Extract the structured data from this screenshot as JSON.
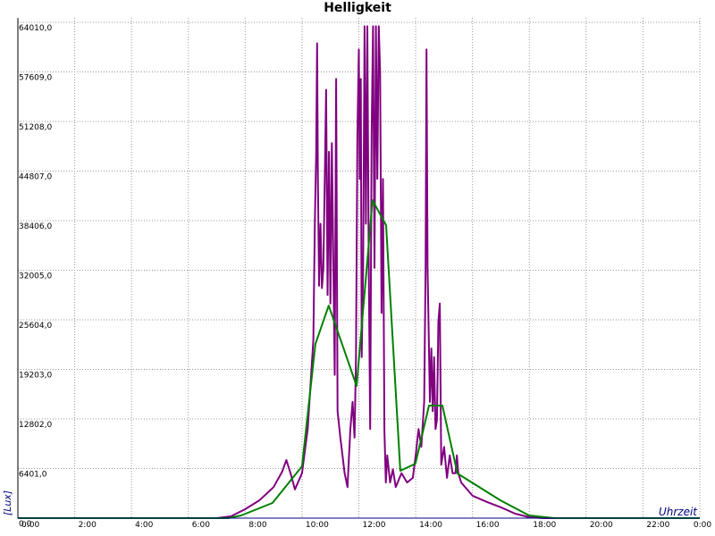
{
  "chart_data": {
    "type": "line",
    "title": "Helligkeit",
    "x_label": "Uhrzeit",
    "y_label": "[Lux]",
    "xlim": [
      0,
      24
    ],
    "xticks": [
      {
        "value": 0,
        "label": "0:00"
      },
      {
        "value": 2,
        "label": "2:00"
      },
      {
        "value": 4,
        "label": "4:00"
      },
      {
        "value": 6,
        "label": "6:00"
      },
      {
        "value": 8,
        "label": "8:00"
      },
      {
        "value": 10,
        "label": "10:00"
      },
      {
        "value": 12,
        "label": "12:00"
      },
      {
        "value": 14,
        "label": "14:00"
      },
      {
        "value": 16,
        "label": "16:00"
      },
      {
        "value": 18,
        "label": "18:00"
      },
      {
        "value": 20,
        "label": "20:00"
      },
      {
        "value": 22,
        "label": "22:00"
      },
      {
        "value": 24,
        "label": "0:00"
      }
    ],
    "ylim": [
      0,
      64010
    ],
    "yticks": [
      {
        "value": 0,
        "label": "0,0"
      },
      {
        "value": 6401,
        "label": "6401,0"
      },
      {
        "value": 12802,
        "label": "12802,0"
      },
      {
        "value": 19203,
        "label": "19203,0"
      },
      {
        "value": 25604,
        "label": "25604,0"
      },
      {
        "value": 32005,
        "label": "32005,0"
      },
      {
        "value": 38406,
        "label": "38406,0"
      },
      {
        "value": 44807,
        "label": "44807,0"
      },
      {
        "value": 51208,
        "label": "51208,0"
      },
      {
        "value": 57609,
        "label": "57609,0"
      },
      {
        "value": 64010,
        "label": "64010,0"
      }
    ],
    "grid": true,
    "series": [
      {
        "color": "#800080",
        "x": [
          0,
          7.0,
          7.5,
          8.0,
          8.5,
          9.0,
          9.3,
          9.45,
          9.6,
          9.75,
          10.0,
          10.2,
          10.4,
          10.45,
          10.5,
          10.53,
          10.56,
          10.6,
          10.65,
          10.7,
          10.75,
          10.8,
          10.85,
          10.9,
          10.95,
          11.0,
          11.05,
          11.1,
          11.15,
          11.2,
          11.25,
          11.35,
          11.5,
          11.6,
          11.7,
          11.78,
          11.85,
          11.9,
          11.95,
          12.0,
          12.03,
          12.07,
          12.1,
          12.15,
          12.2,
          12.25,
          12.3,
          12.35,
          12.4,
          12.45,
          12.5,
          12.55,
          12.6,
          12.65,
          12.7,
          12.75,
          12.8,
          12.85,
          12.9,
          12.95,
          13.0,
          13.1,
          13.2,
          13.3,
          13.5,
          13.7,
          13.9,
          14.0,
          14.1,
          14.2,
          14.3,
          14.35,
          14.38,
          14.42,
          14.5,
          14.55,
          14.6,
          14.65,
          14.7,
          14.75,
          14.8,
          14.85,
          14.9,
          15.0,
          15.1,
          15.2,
          15.3,
          15.4,
          15.45,
          15.5,
          15.6,
          16.0,
          16.5,
          17.0,
          17.5,
          18.0,
          18.5,
          24
        ],
        "values": [
          0,
          0,
          230,
          1150,
          2300,
          4000,
          6000,
          7500,
          5760,
          3700,
          5800,
          11500,
          23000,
          37500,
          47300,
          61300,
          43800,
          30000,
          38000,
          29700,
          32300,
          43800,
          55300,
          28800,
          47300,
          27700,
          48400,
          33400,
          18500,
          56700,
          13800,
          10400,
          5800,
          4000,
          11500,
          15000,
          10400,
          20800,
          49600,
          60500,
          43800,
          56700,
          20800,
          32300,
          63500,
          38000,
          63500,
          32300,
          11500,
          49600,
          63500,
          32300,
          63500,
          43800,
          63500,
          57650,
          26500,
          43800,
          11500,
          4600,
          8100,
          4600,
          6300,
          4000,
          5800,
          4600,
          5200,
          8100,
          11500,
          9200,
          15000,
          32300,
          60500,
          32300,
          15000,
          21900,
          13800,
          20800,
          11500,
          12700,
          25400,
          27700,
          6900,
          9200,
          5200,
          8100,
          5800,
          5800,
          8100,
          5800,
          4600,
          2900,
          2100,
          1400,
          580,
          115,
          0,
          0
        ]
      },
      {
        "color": "#008000",
        "x": [
          0,
          7.4,
          7.86,
          8.96,
          10.0,
          10.47,
          10.94,
          11.92,
          12.48,
          12.96,
          13.46,
          13.99,
          14.47,
          14.94,
          15.47,
          16.98,
          17.99,
          18.87,
          24
        ],
        "values": [
          0,
          0,
          346,
          1960,
          6687,
          22484,
          27441,
          17064,
          41047,
          37818,
          6111,
          7033,
          14528,
          14528,
          5765,
          2306,
          346,
          0,
          0
        ]
      }
    ]
  }
}
